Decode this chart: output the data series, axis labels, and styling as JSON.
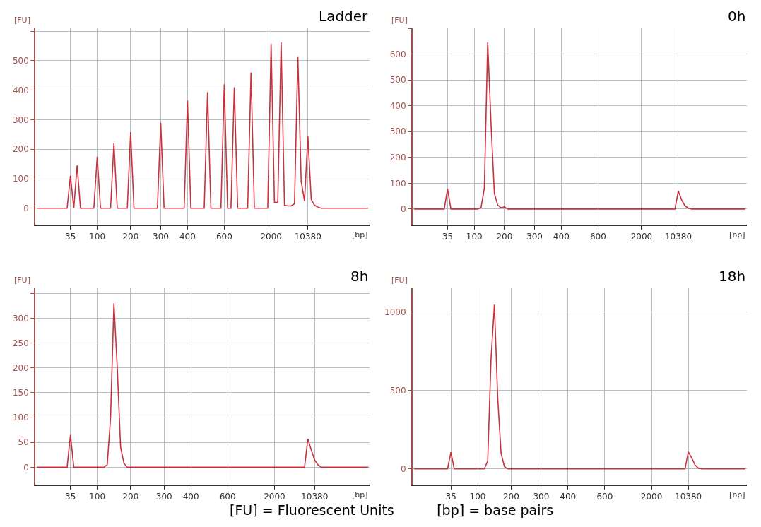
{
  "chart_data": [
    {
      "type": "line",
      "title": "Ladder",
      "xlabel": "[bp]",
      "ylabel": "[FU]",
      "grid": true,
      "marker": "none",
      "line_style": "solid",
      "categories": [
        null,
        null,
        null,
        null,
        null,
        null,
        null,
        null,
        null,
        null,
        "35",
        null,
        null,
        null,
        null,
        null,
        null,
        null,
        "100",
        null,
        null,
        null,
        null,
        null,
        null,
        null,
        null,
        null,
        "200",
        null,
        null,
        null,
        null,
        null,
        null,
        null,
        null,
        "300",
        null,
        null,
        null,
        null,
        null,
        null,
        null,
        "400",
        null,
        null,
        null,
        null,
        null,
        null,
        null,
        null,
        null,
        null,
        "600",
        null,
        null,
        null,
        null,
        null,
        null,
        null,
        null,
        null,
        null,
        null,
        null,
        null,
        "2000",
        null,
        null,
        null,
        null,
        null,
        null,
        null,
        null,
        null,
        null,
        "10380",
        null,
        null,
        null,
        null,
        null,
        null,
        null,
        null,
        null,
        null,
        null,
        null,
        null,
        null,
        null,
        null,
        null,
        null
      ],
      "ylim": [
        -55,
        610
      ],
      "yticks": [
        0,
        100,
        200,
        300,
        400,
        500,
        {
          "value": 600,
          "label": null
        }
      ],
      "series": [
        {
          "color": "#c8323c",
          "values": [
            0,
            0,
            0,
            0,
            0,
            0,
            0,
            0,
            0,
            0,
            110,
            0,
            145,
            0,
            0,
            0,
            0,
            0,
            175,
            0,
            0,
            0,
            0,
            220,
            0,
            0,
            0,
            0,
            258,
            0,
            0,
            0,
            0,
            0,
            0,
            0,
            0,
            290,
            0,
            0,
            0,
            0,
            0,
            0,
            0,
            365,
            0,
            0,
            0,
            0,
            0,
            393,
            0,
            0,
            0,
            0,
            420,
            0,
            0,
            410,
            0,
            0,
            0,
            0,
            460,
            0,
            0,
            0,
            0,
            0,
            558,
            20,
            20,
            562,
            10,
            8,
            8,
            15,
            515,
            90,
            25,
            245,
            30,
            10,
            4,
            0,
            0,
            0,
            0,
            0,
            0,
            0,
            0,
            0,
            0,
            0,
            0,
            0,
            0,
            0
          ]
        }
      ]
    },
    {
      "type": "line",
      "title": "0h",
      "xlabel": "[bp]",
      "ylabel": "[FU]",
      "grid": true,
      "marker": "none",
      "line_style": "solid",
      "categories": [
        null,
        null,
        null,
        null,
        null,
        null,
        null,
        null,
        null,
        null,
        "35",
        null,
        null,
        null,
        null,
        null,
        null,
        null,
        "100",
        null,
        null,
        null,
        null,
        null,
        null,
        null,
        null,
        "200",
        null,
        null,
        null,
        null,
        null,
        null,
        null,
        null,
        "300",
        null,
        null,
        null,
        null,
        null,
        null,
        null,
        "400",
        null,
        null,
        null,
        null,
        null,
        null,
        null,
        null,
        null,
        null,
        "600",
        null,
        null,
        null,
        null,
        null,
        null,
        null,
        null,
        null,
        null,
        null,
        null,
        "2000",
        null,
        null,
        null,
        null,
        null,
        null,
        null,
        null,
        null,
        null,
        "10380",
        null,
        null,
        null,
        null,
        null,
        null,
        null,
        null,
        null,
        null,
        null,
        null,
        null,
        null,
        null,
        null,
        null,
        null,
        null,
        null
      ],
      "ylim": [
        -60,
        700
      ],
      "yticks": [
        0,
        100,
        200,
        300,
        400,
        500,
        600,
        {
          "value": 700,
          "label": null
        }
      ],
      "series": [
        {
          "color": "#c8323c",
          "values": [
            0,
            0,
            0,
            0,
            0,
            0,
            0,
            0,
            0,
            0,
            78,
            0,
            0,
            0,
            0,
            0,
            0,
            0,
            0,
            0,
            5,
            80,
            645,
            330,
            60,
            15,
            5,
            8,
            0,
            0,
            0,
            0,
            0,
            0,
            0,
            0,
            0,
            0,
            0,
            0,
            0,
            0,
            0,
            0,
            0,
            0,
            0,
            0,
            0,
            0,
            0,
            0,
            0,
            0,
            0,
            0,
            0,
            0,
            0,
            0,
            0,
            0,
            0,
            0,
            0,
            0,
            0,
            0,
            0,
            0,
            0,
            0,
            0,
            0,
            0,
            0,
            0,
            0,
            0,
            70,
            35,
            12,
            3,
            0,
            0,
            0,
            0,
            0,
            0,
            0,
            0,
            0,
            0,
            0,
            0,
            0,
            0,
            0,
            0,
            0
          ]
        }
      ]
    },
    {
      "type": "line",
      "title": "8h",
      "xlabel": "[bp]",
      "ylabel": "[FU]",
      "grid": true,
      "marker": "none",
      "line_style": "solid",
      "categories": [
        null,
        null,
        null,
        null,
        null,
        null,
        null,
        null,
        null,
        null,
        "35",
        null,
        null,
        null,
        null,
        null,
        null,
        null,
        "100",
        null,
        null,
        null,
        null,
        null,
        null,
        null,
        null,
        null,
        "200",
        null,
        null,
        null,
        null,
        null,
        null,
        null,
        null,
        null,
        "300",
        null,
        null,
        null,
        null,
        null,
        null,
        null,
        "400",
        null,
        null,
        null,
        null,
        null,
        null,
        null,
        null,
        null,
        null,
        "600",
        null,
        null,
        null,
        null,
        null,
        null,
        null,
        null,
        null,
        null,
        null,
        null,
        null,
        "2000",
        null,
        null,
        null,
        null,
        null,
        null,
        null,
        null,
        null,
        null,
        null,
        "10380",
        null,
        null,
        null,
        null,
        null,
        null,
        null,
        null,
        null,
        null,
        null,
        null,
        null,
        null,
        null,
        null
      ],
      "ylim": [
        -35,
        360
      ],
      "yticks": [
        0,
        50,
        100,
        150,
        200,
        250,
        300,
        {
          "value": 350,
          "label": null
        }
      ],
      "series": [
        {
          "color": "#c8323c",
          "values": [
            0,
            0,
            0,
            0,
            0,
            0,
            0,
            0,
            0,
            0,
            65,
            0,
            0,
            0,
            0,
            0,
            0,
            0,
            0,
            0,
            0,
            5,
            100,
            330,
            200,
            40,
            8,
            0,
            0,
            0,
            0,
            0,
            0,
            0,
            0,
            0,
            0,
            0,
            0,
            0,
            0,
            0,
            0,
            0,
            0,
            0,
            0,
            0,
            0,
            0,
            0,
            0,
            0,
            0,
            0,
            0,
            0,
            0,
            0,
            0,
            0,
            0,
            0,
            0,
            0,
            0,
            0,
            0,
            0,
            0,
            0,
            0,
            0,
            0,
            0,
            0,
            0,
            0,
            0,
            0,
            0,
            57,
            35,
            15,
            5,
            0,
            0,
            0,
            0,
            0,
            0,
            0,
            0,
            0,
            0,
            0,
            0,
            0,
            0,
            0
          ]
        }
      ]
    },
    {
      "type": "line",
      "title": "18h",
      "xlabel": "[bp]",
      "ylabel": "[FU]",
      "grid": true,
      "marker": "none",
      "line_style": "solid",
      "categories": [
        null,
        null,
        null,
        null,
        null,
        null,
        null,
        null,
        null,
        null,
        null,
        "35",
        null,
        null,
        null,
        null,
        null,
        null,
        null,
        "100",
        null,
        null,
        null,
        null,
        null,
        null,
        null,
        null,
        null,
        "200",
        null,
        null,
        null,
        null,
        null,
        null,
        null,
        null,
        "300",
        null,
        null,
        null,
        null,
        null,
        null,
        null,
        "400",
        null,
        null,
        null,
        null,
        null,
        null,
        null,
        null,
        null,
        null,
        "600",
        null,
        null,
        null,
        null,
        null,
        null,
        null,
        null,
        null,
        null,
        null,
        null,
        null,
        "2000",
        null,
        null,
        null,
        null,
        null,
        null,
        null,
        null,
        null,
        null,
        "10380",
        null,
        null,
        null,
        null,
        null,
        null,
        null,
        null,
        null,
        null,
        null,
        null,
        null,
        null,
        null,
        null,
        null
      ],
      "ylim": [
        -100,
        1150
      ],
      "yticks": [
        0,
        500,
        1000
      ],
      "annotations": [
        "[FU] = Fluorescent Units          [bp] = base pairs"
      ],
      "series": [
        {
          "color": "#c8323c",
          "values": [
            0,
            0,
            0,
            0,
            0,
            0,
            0,
            0,
            0,
            0,
            0,
            106,
            0,
            0,
            0,
            0,
            0,
            0,
            0,
            0,
            0,
            0,
            50,
            700,
            1046,
            450,
            100,
            15,
            0,
            0,
            0,
            0,
            0,
            0,
            0,
            0,
            0,
            0,
            0,
            0,
            0,
            0,
            0,
            0,
            0,
            0,
            0,
            0,
            0,
            0,
            0,
            0,
            0,
            0,
            0,
            0,
            0,
            0,
            0,
            0,
            0,
            0,
            0,
            0,
            0,
            0,
            0,
            0,
            0,
            0,
            0,
            0,
            0,
            0,
            0,
            0,
            0,
            0,
            0,
            0,
            0,
            0,
            109,
            70,
            25,
            5,
            0,
            0,
            0,
            0,
            0,
            0,
            0,
            0,
            0,
            0,
            0,
            0,
            0,
            0
          ]
        }
      ]
    }
  ]
}
